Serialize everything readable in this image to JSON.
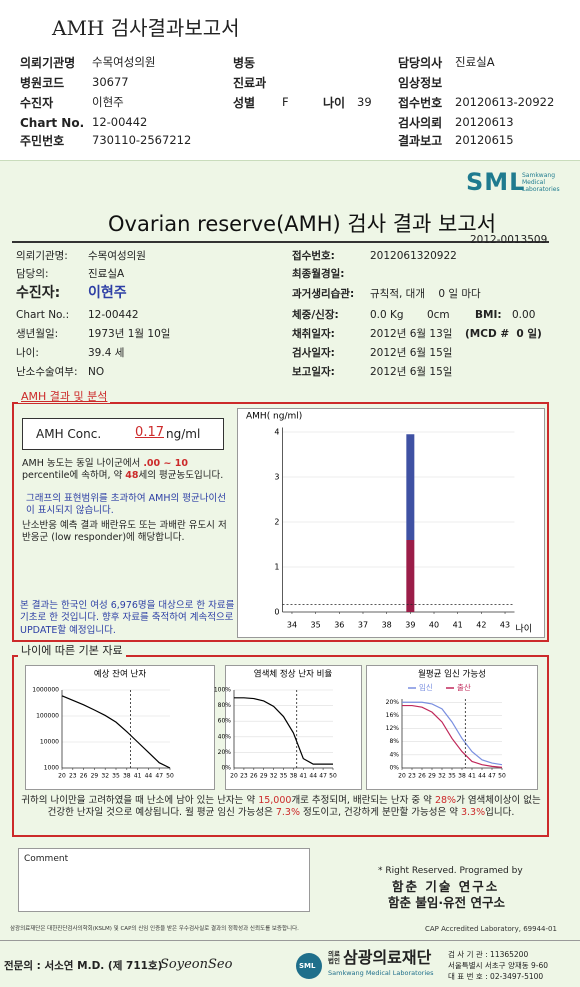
{
  "header": {
    "title": "AMH 검사결과보고서",
    "fields": [
      {
        "label": "의뢰기관명",
        "value": "수목여성의원"
      },
      {
        "label": "병동"
      },
      {
        "label": "담당의사",
        "value": "진료실A"
      },
      {
        "label": "병원코드",
        "value": "30677"
      },
      {
        "label": "진료과"
      },
      {
        "label": "임상정보"
      },
      {
        "label": "수진자",
        "value": "이현주"
      },
      {
        "label": "성별",
        "value": "F"
      },
      {
        "label": "나이",
        "value": 39
      },
      {
        "label": "접수번호",
        "value": "20120613-20922"
      },
      {
        "label": "Chart No.",
        "value": "12-00442"
      },
      {
        "label": "검사의뢰",
        "value": "20120613"
      },
      {
        "label": "주민번호",
        "value": "730110-2567212"
      },
      {
        "label": "결과보고",
        "value": "20120615"
      }
    ]
  },
  "report": {
    "logo": "SML",
    "logo_sub": [
      "Samkwang",
      "Medical",
      "Laboratories"
    ],
    "title": "Ovarian reserve(AMH) 검사 결과 보고서",
    "number": "2012-0013509",
    "left": [
      {
        "label": "의뢰기관명:",
        "value": "수목여성의원"
      },
      {
        "label": "담당의:",
        "value": "진료실A"
      },
      {
        "label": "수진자:",
        "value": "이현주"
      },
      {
        "label": "Chart No.:",
        "value": "12-00442"
      },
      {
        "label": "생년월일:",
        "value": "1973년 1월 10일"
      },
      {
        "label": "나이:",
        "value": "39.4 세"
      },
      {
        "label": "난소수술여부:",
        "value": "NO"
      }
    ],
    "right": [
      {
        "label": "접수번호:",
        "value": "2012061320922"
      },
      {
        "label": "최종월경일:"
      },
      {
        "label": "과거생리습관:",
        "value": "규칙적, 대개    0 일 마다"
      },
      {
        "label": "체중/신장:",
        "value": "0.0 Kg       0cm",
        "extra": "BMI:",
        "extra_value": "0.00"
      },
      {
        "label": "채취일자:",
        "value": "2012년 6월 13일",
        "extra": "(MCD #  0 일)"
      },
      {
        "label": "검사일자:",
        "value": "2012년 6월 15일"
      },
      {
        "label": "보고일자:",
        "value": "2012년 6월 15일"
      }
    ]
  },
  "amh": {
    "section": "AMH 결과 및 분석",
    "label": "AMH Conc.",
    "value": 0.17,
    "unit": "ng/ml",
    "percentile": [
      "AMH 농도는 동일 나이군에서 ",
      ".00 ~  10",
      " percentile에 속하며, 약 ",
      "48",
      "세의 평균농도입니다."
    ],
    "note": "그래프의 표현범위를 초과하여 AMH의 평균나이선이 표시되지 않습니다.",
    "response": "난소반응 예측 결과 배란유도 또는 과배란 유도시 저반응군 (low responder)에 해당합니다.",
    "source": "본 결과는 한국인 여성 6,976명을 대상으로 한 자료를 기초로 한 것입니다. 향후 자료를 축적하여 계속적으로 UPDATE할 예정입니다."
  },
  "basic": {
    "section": "나이에 따른 기본 자료",
    "summary": [
      "귀하의 나이만을 고려하였을 때 난소에 남아 있는 난자는 약 ",
      "15,000",
      "개로 추정되며, 배란되는 난자 중 약 ",
      "28%",
      "가 염색체이상이 없는 건강한 난자일 것으로 예상됩니다. 월 평균 임신 가능성은 ",
      "7.3%",
      " 정도이고, 건강하게 분만할 가능성은 약 ",
      "3.3%",
      "입니다."
    ]
  },
  "chart_data": [
    {
      "type": "stacked-bar",
      "y_label": "AMH( ng/ml)",
      "x_label": "나이",
      "xlim": [
        33.6,
        43.4
      ],
      "xticks": [
        34,
        35,
        36,
        37,
        38,
        39,
        40,
        41,
        42,
        43
      ],
      "ylim": [
        0,
        4.1
      ],
      "yticks": [
        0,
        1,
        2,
        3,
        4
      ],
      "x": [
        39
      ],
      "series": [
        {
          "color": "#9b1d48",
          "values": [
            1.6
          ]
        },
        {
          "color": "#3f51a3",
          "values": [
            2.35
          ]
        }
      ]
    },
    {
      "type": "line",
      "title": "예상 잔여 난자",
      "log_scale": true,
      "xlim": [
        20,
        50
      ],
      "xticks": [
        20,
        23,
        26,
        29,
        32,
        35,
        38,
        41,
        44,
        47,
        50
      ],
      "ylim": [
        1000,
        1000000
      ],
      "yticks": [
        1000000,
        100000,
        10000,
        1000
      ],
      "x": [
        20,
        23,
        26,
        29,
        32,
        35,
        38,
        41,
        44,
        47,
        50
      ],
      "series": [
        {
          "color": "#000000",
          "values": [
            600000,
            400000,
            270000,
            170000,
            105000,
            58000,
            25000,
            10000,
            4000,
            1600,
            1000
          ]
        }
      ]
    },
    {
      "type": "line",
      "title": "염색체 정상 난자 비율",
      "xlim": [
        20,
        50
      ],
      "xticks": [
        20,
        23,
        26,
        29,
        32,
        35,
        38,
        41,
        44,
        47,
        50
      ],
      "ylim": [
        0,
        100
      ],
      "yticks": [
        {
          "value": 100,
          "label": "100%"
        },
        {
          "value": 80,
          "label": "80%"
        },
        {
          "value": 60,
          "label": "60%"
        },
        {
          "value": 40,
          "label": "40%"
        },
        {
          "value": 20,
          "label": "20%"
        },
        {
          "value": 0,
          "label": "0%"
        }
      ],
      "x": [
        20,
        23,
        26,
        29,
        32,
        35,
        38,
        41,
        44,
        47,
        50
      ],
      "series": [
        {
          "color": "#000000",
          "values": [
            90,
            90,
            89,
            86,
            79,
            66,
            45,
            12,
            5,
            5,
            5
          ]
        }
      ]
    },
    {
      "type": "line",
      "title": "월평균 임신 가능성",
      "xlim": [
        20,
        50
      ],
      "xticks": [
        20,
        23,
        26,
        29,
        32,
        35,
        38,
        41,
        44,
        47,
        50
      ],
      "ylim": [
        0,
        21
      ],
      "yticks": [
        {
          "value": 20,
          "label": "20%"
        },
        {
          "value": 16,
          "label": "16%"
        },
        {
          "value": 12,
          "label": "12%"
        },
        {
          "value": 8,
          "label": "8%"
        },
        {
          "value": 4,
          "label": "4%"
        },
        {
          "value": 0,
          "label": "0%"
        }
      ],
      "x": [
        20,
        23,
        26,
        29,
        32,
        35,
        38,
        41,
        44,
        47,
        50
      ],
      "series": [
        {
          "name": "임신",
          "color": "#7a8fe0",
          "values": [
            20,
            20,
            20,
            19.5,
            18,
            14,
            9,
            5,
            2.5,
            1.5,
            1
          ]
        },
        {
          "name": "출산",
          "color": "#c0285a",
          "values": [
            19,
            19,
            18.5,
            17,
            14,
            9,
            5,
            2,
            1,
            0.5,
            0.2
          ]
        }
      ]
    }
  ],
  "footer": {
    "comment": "Comment",
    "rights": "* Right Reserved. Programed by",
    "labs": [
      "함춘 기술 연구소",
      "함춘 불임·유전 연구소"
    ],
    "cert": "삼광의료재단은 대한진단검사의학회(KSLM) 및 CAP의 신임 인증을 받은 우수검사실로 결과의 정확성과 신뢰도를 보증합니다.",
    "cap": "CAP Accredited Laboratory, 69944-01",
    "doctor": "전문의 : 서소연 M.D. (제 711호)",
    "signature": "SoyeonSeo",
    "org_type": "의료법인",
    "org": "삼광의료재단",
    "org_en": "Samkwang Medical Laboratories",
    "org_logo": "SML",
    "contact": [
      "검 사 기 관 : 11365200",
      "서울특별시 서초구 양재동 9-60",
      "대 표 번 호 : 02-3497-5100"
    ]
  }
}
